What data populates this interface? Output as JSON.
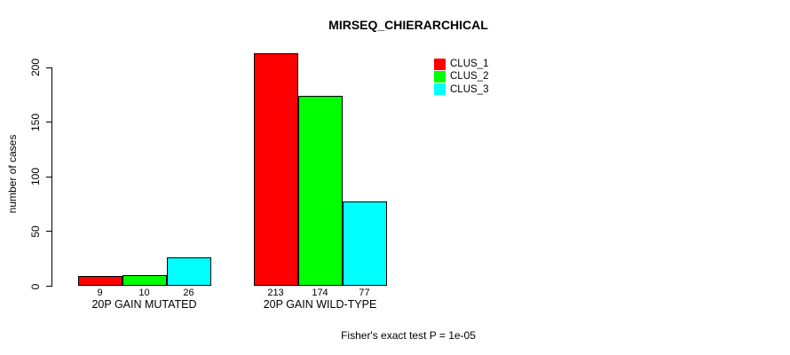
{
  "chart_data": {
    "type": "bar",
    "title": "MIRSEQ_CHIERARCHICAL",
    "ylabel": "number of cases",
    "xlabel": "",
    "annotation": "Fisher's exact test P = 1e-05",
    "categories": [
      "20P GAIN MUTATED",
      "20P GAIN WILD-TYPE"
    ],
    "series": [
      {
        "name": "CLUS_1",
        "color": "#ff0000",
        "values": [
          9,
          213
        ]
      },
      {
        "name": "CLUS_2",
        "color": "#00ff00",
        "values": [
          10,
          174
        ]
      },
      {
        "name": "CLUS_3",
        "color": "#00ffff",
        "values": [
          26,
          77
        ]
      }
    ],
    "bar_value_labels": [
      [
        "9",
        "10",
        "26"
      ],
      [
        "213",
        "174",
        "77"
      ]
    ],
    "yticks": [
      0,
      50,
      100,
      150,
      200
    ],
    "ylim": [
      0,
      200
    ],
    "grid": false,
    "legend_position": "top-right",
    "bar_border_color": "#000000",
    "text_color": "#000000",
    "background_color": "#ffffff"
  }
}
